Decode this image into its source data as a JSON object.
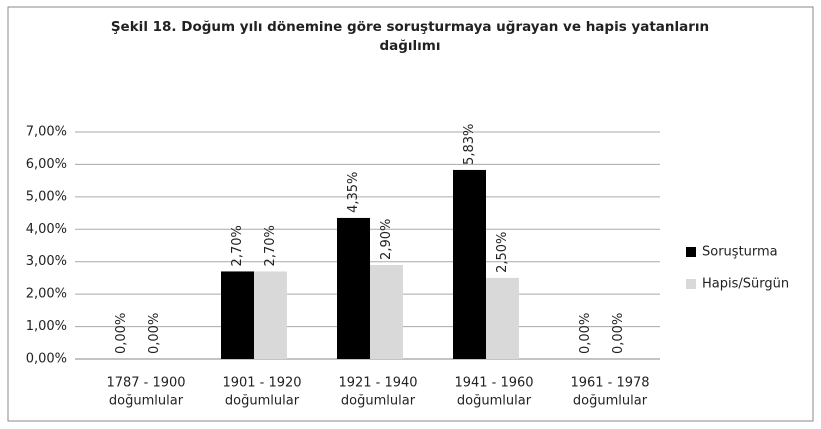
{
  "chart_data": {
    "type": "bar",
    "title": [
      "Şekil 18. Doğum yılı dönemine göre soruşturmaya uğrayan ve hapis yatanların",
      "dağılımı"
    ],
    "categories": [
      [
        "1787 - 1900",
        "doğumlular"
      ],
      [
        "1901 - 1920",
        "doğumlular"
      ],
      [
        "1921 - 1940",
        "doğumlular"
      ],
      [
        "1941 - 1960",
        "doğumlular"
      ],
      [
        "1961 - 1978",
        "doğumlular"
      ]
    ],
    "series": [
      {
        "name": "Soruşturma",
        "color": "#000000",
        "values": [
          0,
          2.7,
          4.35,
          5.83,
          0
        ],
        "value_labels": [
          "0,00%",
          "2,70%",
          "4,35%",
          "5,83%",
          "0,00%"
        ]
      },
      {
        "name": "Hapis/Sürgün",
        "color": "#d9d9d9",
        "values": [
          0,
          2.7,
          2.9,
          2.5,
          0
        ],
        "value_labels": [
          "0,00%",
          "2,70%",
          "2,90%",
          "2,50%",
          "0,00%"
        ]
      }
    ],
    "ylim": [
      0,
      7
    ],
    "yticks": [
      {
        "value": 0,
        "label": "0,00%"
      },
      {
        "value": 1,
        "label": "1,00%"
      },
      {
        "value": 2,
        "label": "2,00%"
      },
      {
        "value": 3,
        "label": "3,00%"
      },
      {
        "value": 4,
        "label": "4,00%"
      },
      {
        "value": 5,
        "label": "5,00%"
      },
      {
        "value": 6,
        "label": "6,00%"
      },
      {
        "value": 7,
        "label": "7,00%"
      }
    ],
    "grid": true,
    "legend": "right"
  }
}
